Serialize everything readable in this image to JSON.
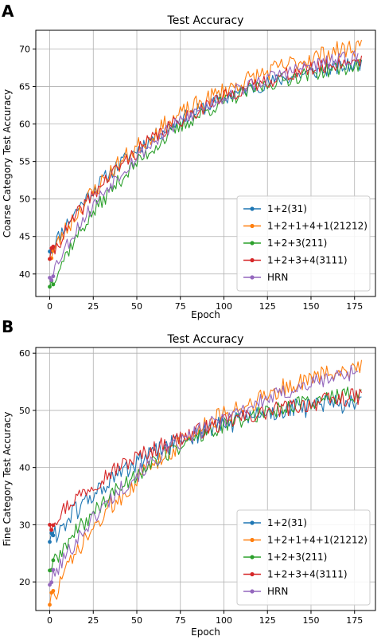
{
  "panels": [
    "A",
    "B"
  ],
  "chart_data": [
    {
      "type": "line",
      "panel": "A",
      "title": "Test Accuracy",
      "xlabel": "Epoch",
      "ylabel": "Coarse Category Test Accuracy",
      "xlim": [
        -8,
        187
      ],
      "ylim": [
        37,
        72.5
      ],
      "xticks": [
        0,
        25,
        50,
        75,
        100,
        125,
        150,
        175
      ],
      "yticks": [
        40,
        45,
        50,
        55,
        60,
        65,
        70
      ],
      "grid": true,
      "legend_placement": "lower-right",
      "series": [
        {
          "name": "1+2(31)",
          "color": "#1f77b4",
          "x_end": 179,
          "start": 43.0,
          "mid": 63.5,
          "end": 68.0,
          "noise": 1.0,
          "seed": 11
        },
        {
          "name": "1+2+1+4+1(21212)",
          "color": "#ff7f0e",
          "x_end": 179,
          "start": 42.0,
          "mid": 64.0,
          "end": 70.5,
          "noise": 1.3,
          "seed": 23
        },
        {
          "name": "1+2+3(211)",
          "color": "#2ca02c",
          "x_end": 179,
          "start": 38.3,
          "mid": 63.5,
          "end": 67.8,
          "noise": 1.0,
          "seed": 37
        },
        {
          "name": "1+2+3+4(3111)",
          "color": "#d62728",
          "x_end": 179,
          "start": 42.0,
          "mid": 63.6,
          "end": 68.6,
          "noise": 1.0,
          "seed": 41
        },
        {
          "name": "HRN",
          "color": "#9467bd",
          "x_end": 177,
          "start": 39.5,
          "mid": 63.6,
          "end": 69.0,
          "noise": 1.0,
          "seed": 53
        }
      ]
    },
    {
      "type": "line",
      "panel": "B",
      "title": "Test Accuracy",
      "xlabel": "Epoch",
      "ylabel": "Fine Category Test Accuracy",
      "xlim": [
        -8,
        187
      ],
      "ylim": [
        15,
        61
      ],
      "xticks": [
        0,
        25,
        50,
        75,
        100,
        125,
        150,
        175
      ],
      "yticks": [
        20,
        30,
        40,
        50,
        60
      ],
      "grid": true,
      "legend_placement": "lower-right",
      "series": [
        {
          "name": "1+2(31)",
          "color": "#1f77b4",
          "x_end": 179,
          "start": 27.0,
          "mid": 48.0,
          "end": 51.5,
          "noise": 1.8,
          "seed": 61
        },
        {
          "name": "1+2+1+4+1(21212)",
          "color": "#ff7f0e",
          "x_end": 179,
          "start": 16.0,
          "mid": 48.5,
          "end": 58.0,
          "noise": 1.8,
          "seed": 73
        },
        {
          "name": "1+2+3(211)",
          "color": "#2ca02c",
          "x_end": 179,
          "start": 22.0,
          "mid": 47.5,
          "end": 53.0,
          "noise": 1.5,
          "seed": 89
        },
        {
          "name": "1+2+3+4(3111)",
          "color": "#d62728",
          "x_end": 179,
          "start": 30.0,
          "mid": 47.5,
          "end": 52.5,
          "noise": 1.5,
          "seed": 97
        },
        {
          "name": "HRN",
          "color": "#9467bd",
          "x_end": 177,
          "start": 19.5,
          "mid": 47.5,
          "end": 57.0,
          "noise": 1.5,
          "seed": 101
        }
      ]
    }
  ]
}
